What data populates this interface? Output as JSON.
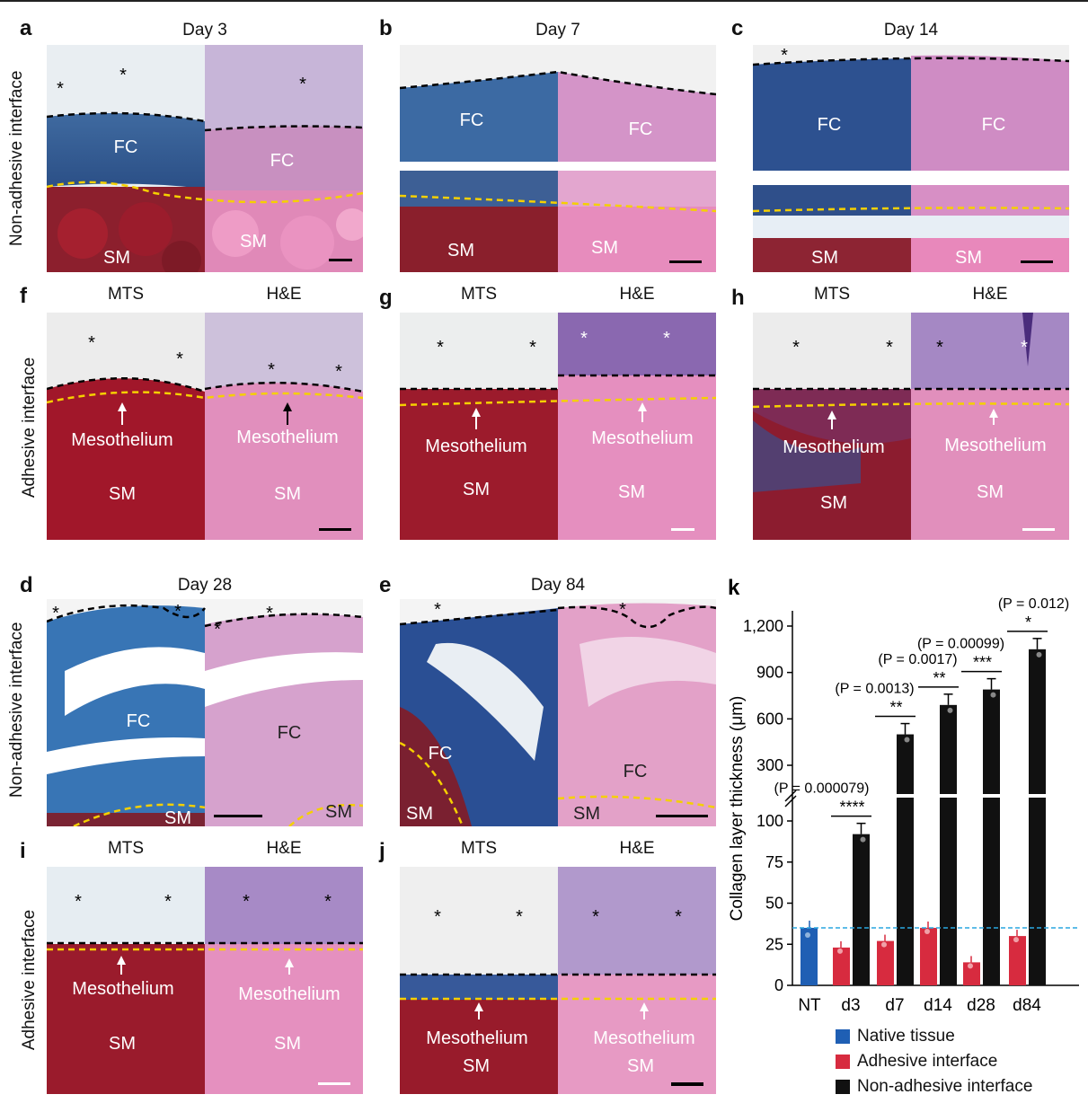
{
  "panels": {
    "a": {
      "letter": "a",
      "title": "Day 3",
      "labels": [
        "FC",
        "FC",
        "SM",
        "SM"
      ]
    },
    "b": {
      "letter": "b",
      "title": "Day 7",
      "labels": [
        "FC",
        "FC",
        "SM",
        "SM"
      ]
    },
    "c": {
      "letter": "c",
      "title": "Day 14",
      "labels": [
        "FC",
        "FC",
        "SM",
        "SM"
      ]
    },
    "d": {
      "letter": "d",
      "title": "Day 28",
      "labels": [
        "FC",
        "FC",
        "SM",
        "SM"
      ]
    },
    "e": {
      "letter": "e",
      "title": "Day 84",
      "labels": [
        "FC",
        "FC",
        "SM",
        "SM"
      ]
    },
    "f": {
      "letter": "f",
      "stains": [
        "MTS",
        "H&E"
      ],
      "labels": [
        "Mesothelium",
        "Mesothelium",
        "SM",
        "SM"
      ]
    },
    "g": {
      "letter": "g",
      "stains": [
        "MTS",
        "H&E"
      ],
      "labels": [
        "Mesothelium",
        "Mesothelium",
        "SM",
        "SM"
      ]
    },
    "h": {
      "letter": "h",
      "stains": [
        "MTS",
        "H&E"
      ],
      "labels": [
        "Mesothelium",
        "Mesothelium",
        "SM",
        "SM"
      ]
    },
    "i": {
      "letter": "i",
      "stains": [
        "MTS",
        "H&E"
      ],
      "labels": [
        "Mesothelium",
        "Mesothelium",
        "SM",
        "SM"
      ]
    },
    "j": {
      "letter": "j",
      "stains": [
        "MTS",
        "H&E"
      ],
      "labels": [
        "Mesothelium",
        "Mesothelium",
        "SM",
        "SM"
      ]
    }
  },
  "row_labels": {
    "non_adhesive": "Non-adhesive interface",
    "adhesive": "Adhesive interface"
  },
  "chart_data": {
    "type": "bar",
    "panel_letter": "k",
    "ylabel": "Collagen layer thickness (μm)",
    "categories": [
      "NT",
      "d3",
      "d7",
      "d14",
      "d28",
      "d84"
    ],
    "yticks_lower": [
      "0",
      "25",
      "50",
      "75",
      "100"
    ],
    "yticks_upper": [
      "300",
      "600",
      "900",
      "1,200"
    ],
    "axis_break": true,
    "series": [
      {
        "name": "Native tissue",
        "color": "#1f5fb4",
        "values": [
          35,
          null,
          null,
          null,
          null,
          null
        ]
      },
      {
        "name": "Adhesive interface",
        "color": "#d72b3f",
        "values": [
          null,
          23,
          27,
          35,
          14,
          30
        ]
      },
      {
        "name": "Non-adhesive interface",
        "color": "#111111",
        "values": [
          null,
          92,
          500,
          690,
          790,
          1050
        ]
      }
    ],
    "reference_line": {
      "value": 35,
      "color": "#2aa7e0",
      "style": "dashed"
    },
    "significance": [
      {
        "category": "d3",
        "stars": "****",
        "p": "(P = 0.000079)"
      },
      {
        "category": "d7",
        "stars": "**",
        "p": "(P = 0.0013)"
      },
      {
        "category": "d14",
        "stars": "**",
        "p": "(P = 0.0017)"
      },
      {
        "category": "d28",
        "stars": "***",
        "p": "(P = 0.00099)"
      },
      {
        "category": "d84",
        "stars": "*",
        "p": "(P = 0.012)"
      }
    ]
  }
}
